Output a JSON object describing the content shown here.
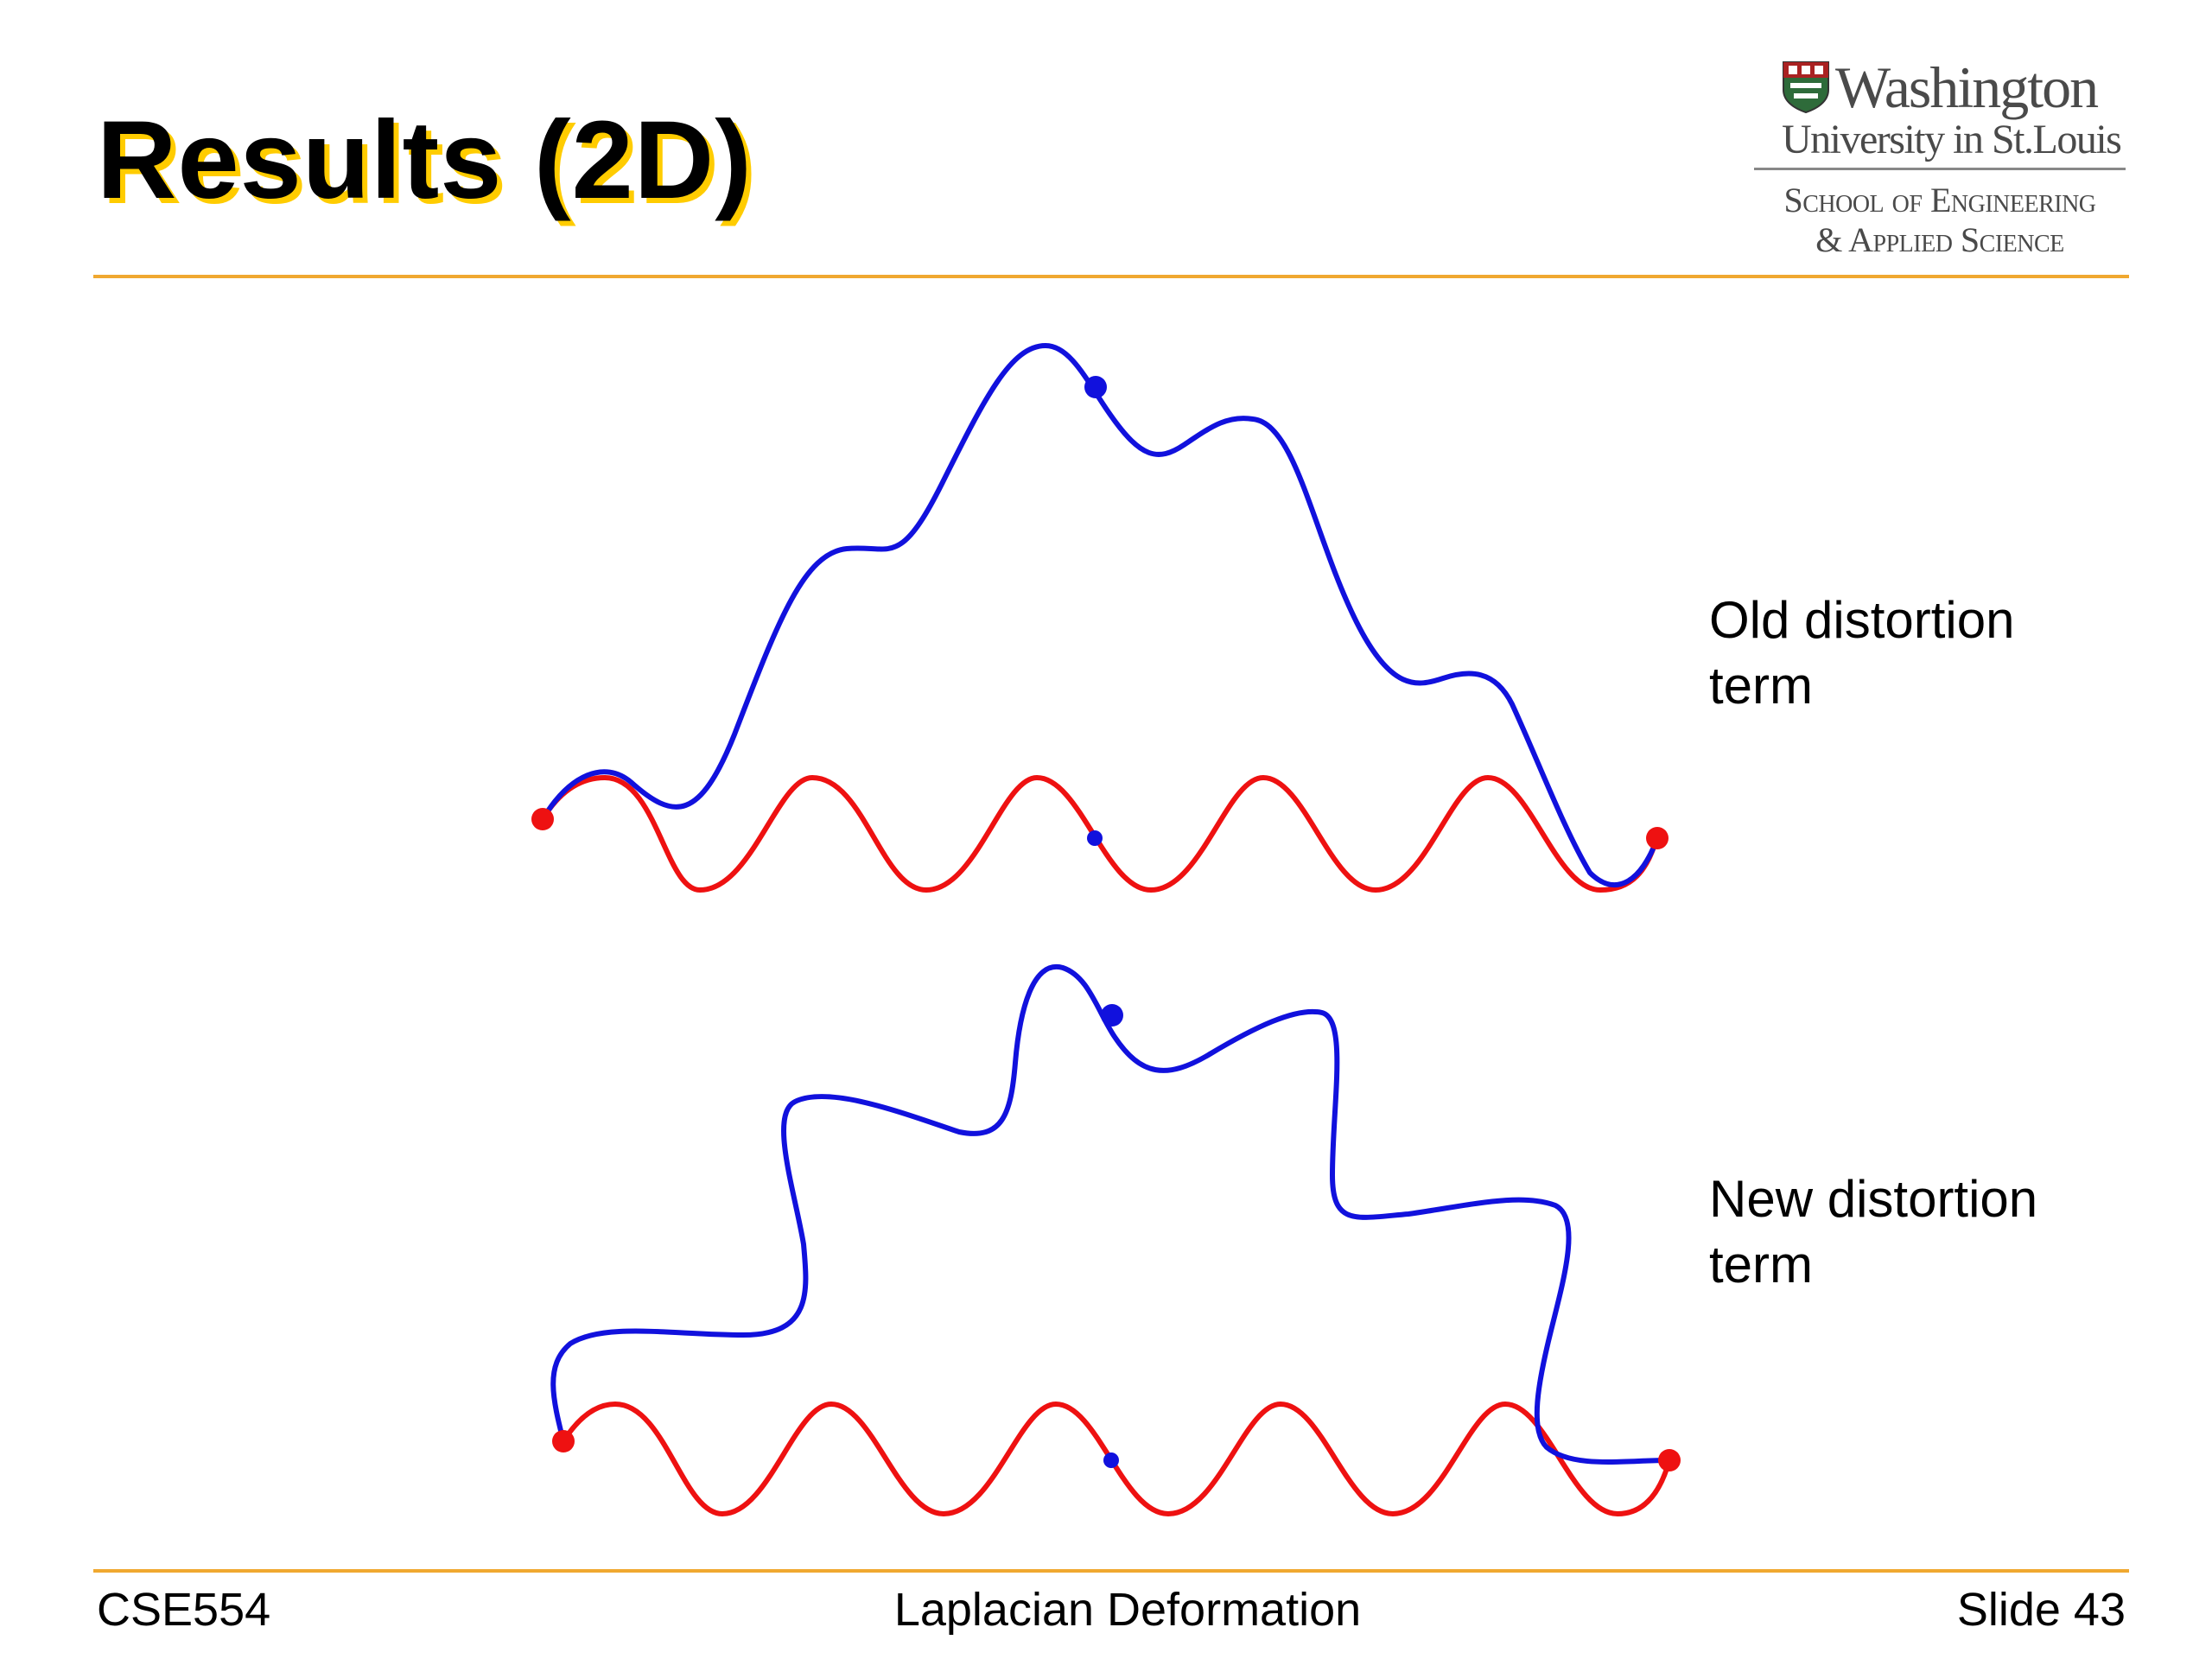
{
  "slide": {
    "title": "Results (2D)"
  },
  "logo": {
    "line1": "Washington",
    "line2": "University in St.Louis",
    "line3": "School of Engineering",
    "line4": "& Applied Science"
  },
  "captions": {
    "top": "Old distortion term",
    "bottom": "New distortion term"
  },
  "footer": {
    "course": "CSE554",
    "topic": "Laplacian Deformation",
    "slide_number": "Slide 43"
  },
  "colors": {
    "original_curve": "#ee1111",
    "deformed_curve": "#1111dd",
    "accent_rule": "#f0a830",
    "title_shadow": "#ffcc00"
  }
}
